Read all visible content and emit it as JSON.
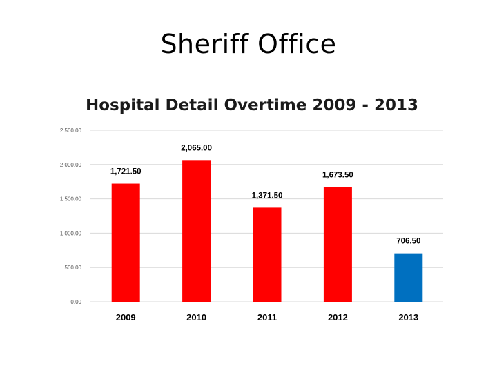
{
  "slide": {
    "title": "Sheriff Office"
  },
  "colors": {
    "bar_default": "#ff0000",
    "bar_highlight": "#0070c0",
    "grid": "#d9d9d9"
  },
  "chart_data": {
    "type": "bar",
    "title": "Hospital Detail Overtime 2009 - 2013",
    "categories": [
      "2009",
      "2010",
      "2011",
      "2012",
      "2013"
    ],
    "values": [
      1721.5,
      2065.0,
      1371.5,
      1673.5,
      706.5
    ],
    "data_labels": [
      "1,721.50",
      "2,065.00",
      "1,371.50",
      "1,673.50",
      "706.50"
    ],
    "bar_colors": [
      "#ff0000",
      "#ff0000",
      "#ff0000",
      "#ff0000",
      "#0070c0"
    ],
    "ylim": [
      0,
      2500
    ],
    "yticks": [
      0,
      500,
      1000,
      1500,
      2000,
      2500
    ],
    "ytick_labels": [
      "0.00",
      "500.00",
      "1,000.00",
      "1,500.00",
      "2,000.00",
      "2,500.00"
    ],
    "xlabel": "",
    "ylabel": "",
    "grid": true,
    "legend": "none"
  }
}
